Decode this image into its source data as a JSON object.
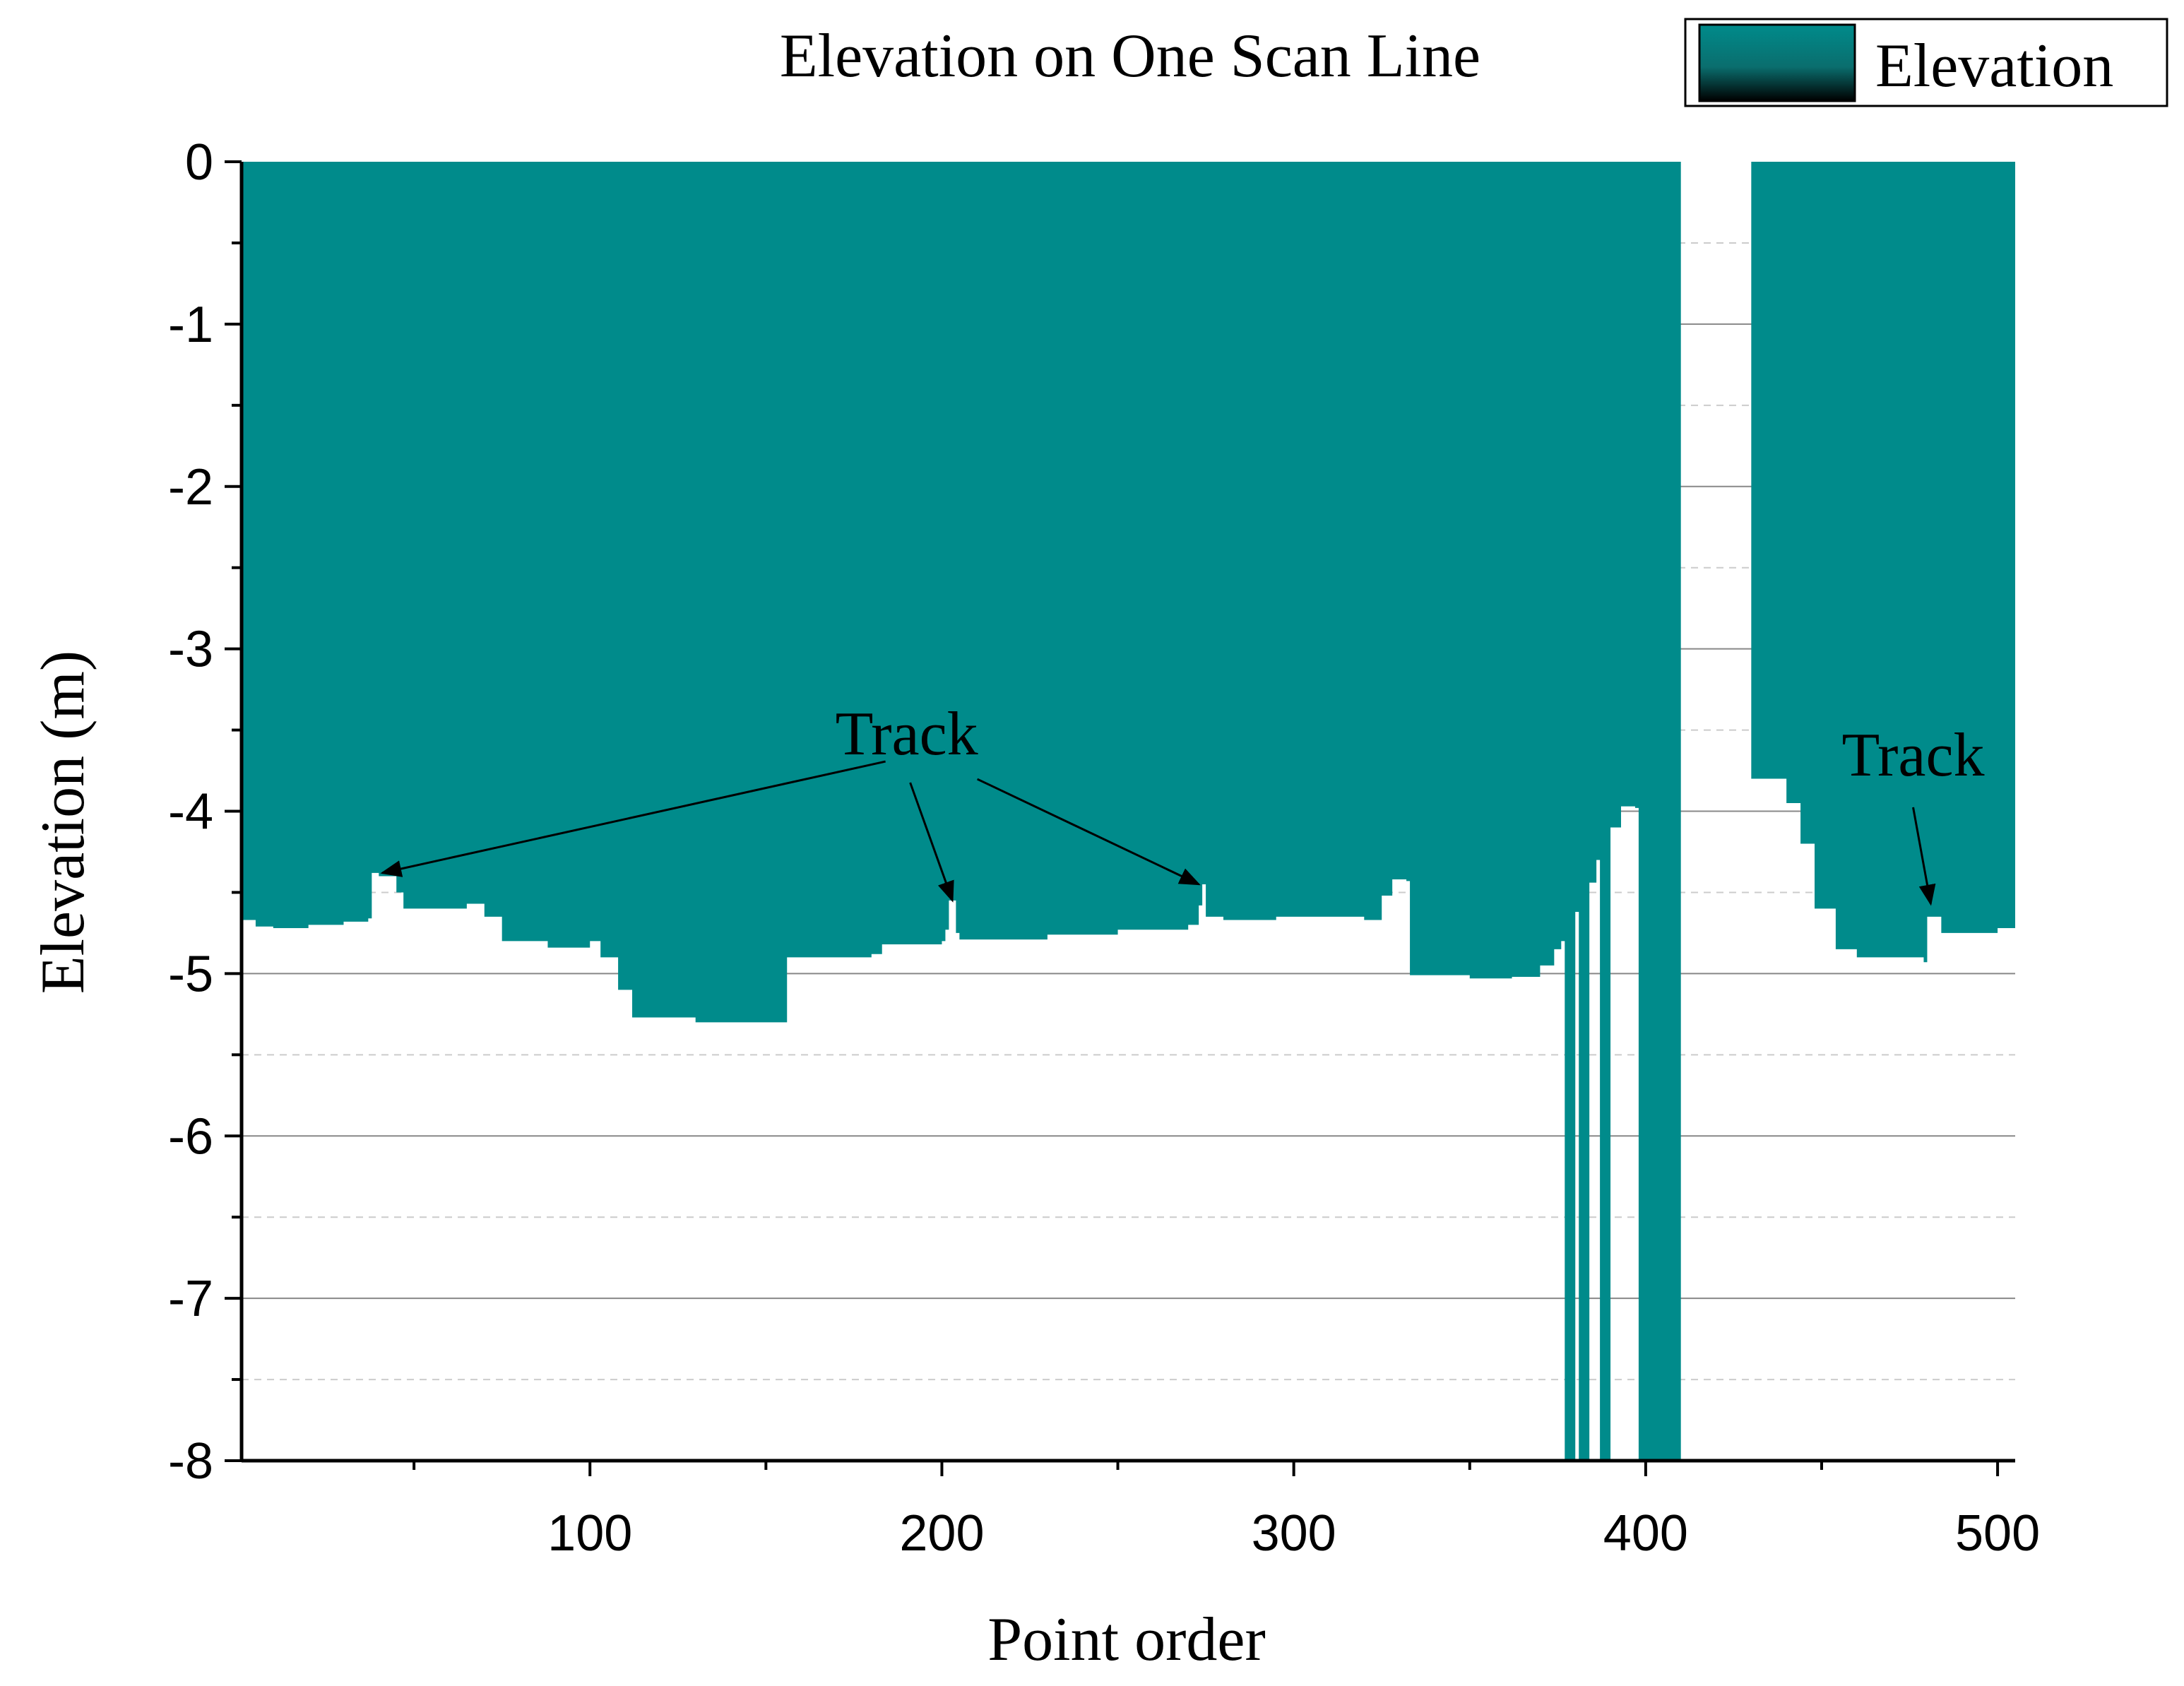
{
  "chart_data": {
    "type": "area",
    "title": "Elevation on One Scan Line",
    "xlabel": "Point order",
    "ylabel": "Elevation (m)",
    "xlim": [
      1,
      505
    ],
    "ylim": [
      -8,
      0
    ],
    "x_ticks": [
      100,
      200,
      300,
      400,
      500
    ],
    "y_ticks": [
      0,
      -1,
      -2,
      -3,
      -4,
      -5,
      -6,
      -7,
      -8
    ],
    "x_tick_labels": [
      "100",
      "200",
      "300",
      "400",
      "500"
    ],
    "y_tick_labels": [
      "0",
      "-1",
      "-2",
      "-3",
      "-4",
      "-5",
      "-6",
      "-7",
      "-8"
    ],
    "grid": true,
    "legend_position": "top-right",
    "series": [
      {
        "name": "Elevation",
        "color": "#008b8b",
        "baseline": 0,
        "points": [
          [
            1,
            -4.67
          ],
          [
            5,
            -4.71
          ],
          [
            10,
            -4.72
          ],
          [
            20,
            -4.7
          ],
          [
            30,
            -4.68
          ],
          [
            37,
            -4.66
          ],
          [
            38,
            -4.38
          ],
          [
            40,
            -4.4
          ],
          [
            45,
            -4.5
          ],
          [
            47,
            -4.6
          ],
          [
            55,
            -4.6
          ],
          [
            65,
            -4.57
          ],
          [
            70,
            -4.65
          ],
          [
            75,
            -4.8
          ],
          [
            88,
            -4.84
          ],
          [
            100,
            -4.8
          ],
          [
            103,
            -4.9
          ],
          [
            108,
            -5.1
          ],
          [
            112,
            -5.27
          ],
          [
            130,
            -5.3
          ],
          [
            155,
            -5.3
          ],
          [
            156,
            -4.9
          ],
          [
            180,
            -4.88
          ],
          [
            183,
            -4.82
          ],
          [
            200,
            -4.8
          ],
          [
            201,
            -4.73
          ],
          [
            202,
            -4.55
          ],
          [
            204,
            -4.75
          ],
          [
            205,
            -4.79
          ],
          [
            230,
            -4.76
          ],
          [
            250,
            -4.73
          ],
          [
            270,
            -4.7
          ],
          [
            273,
            -4.58
          ],
          [
            274,
            -4.45
          ],
          [
            275,
            -4.65
          ],
          [
            280,
            -4.67
          ],
          [
            295,
            -4.65
          ],
          [
            320,
            -4.67
          ],
          [
            325,
            -4.52
          ],
          [
            328,
            -4.42
          ],
          [
            332,
            -4.43
          ],
          [
            333,
            -5.01
          ],
          [
            350,
            -5.03
          ],
          [
            362,
            -5.02
          ],
          [
            370,
            -4.95
          ],
          [
            374,
            -4.85
          ],
          [
            376,
            -4.8
          ],
          [
            377,
            -8.0
          ],
          [
            379,
            -8.0
          ],
          [
            380,
            -4.62
          ],
          [
            381,
            -8.0
          ],
          [
            383,
            -8.0
          ],
          [
            384,
            -4.44
          ],
          [
            386,
            -4.3
          ],
          [
            387,
            -8.0
          ],
          [
            389,
            -8.0
          ],
          [
            390,
            -4.1
          ],
          [
            393,
            -3.97
          ],
          [
            397,
            -3.98
          ],
          [
            398,
            -8.0
          ],
          [
            409,
            -8.0
          ],
          [
            410,
            0.0
          ],
          [
            429,
            0.0
          ],
          [
            430,
            -3.8
          ],
          [
            440,
            -3.95
          ],
          [
            444,
            -4.2
          ],
          [
            448,
            -4.6
          ],
          [
            454,
            -4.85
          ],
          [
            460,
            -4.9
          ],
          [
            479,
            -4.93
          ],
          [
            480,
            -4.65
          ],
          [
            484,
            -4.75
          ],
          [
            490,
            -4.75
          ],
          [
            500,
            -4.72
          ],
          [
            505,
            -4.72
          ]
        ]
      }
    ],
    "annotations": [
      {
        "text": "Track",
        "label_at": [
          190,
          -3.65
        ],
        "arrows_to": [
          [
            41,
            -4.38
          ],
          [
            203,
            -4.55
          ],
          [
            273,
            -4.45
          ]
        ]
      },
      {
        "text": "Track",
        "label_at": [
          476,
          -3.78
        ],
        "arrows_to": [
          [
            481,
            -4.57
          ]
        ]
      }
    ]
  }
}
